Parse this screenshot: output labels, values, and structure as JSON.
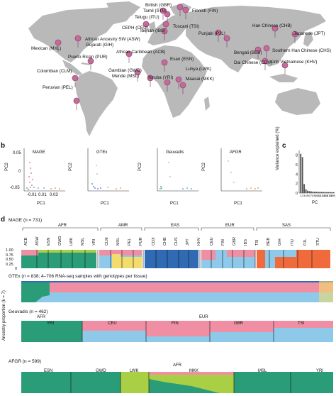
{
  "panel_letters": {
    "a": "a",
    "b": "b",
    "c": "c",
    "d": "d"
  },
  "map": {
    "populations": [
      {
        "label": "British (GBR)"
      },
      {
        "label": "Tamil (STU)"
      },
      {
        "label": "Telugu (ITU)"
      },
      {
        "label": "Finnish (FIN)"
      },
      {
        "label": "CEPH (CEU)"
      },
      {
        "label": "Iberian (IBS)"
      },
      {
        "label": "Toscani (TSI)"
      },
      {
        "label": "Han Chinese (CHB)"
      },
      {
        "label": "African Ancestry SW (ASW)"
      },
      {
        "label": "Gujarati (GIH)"
      },
      {
        "label": "Punjabi (PJL)"
      },
      {
        "label": "Japanese (JPT)"
      },
      {
        "label": "Mexican (MXL)"
      },
      {
        "label": "African Caribbean (ACB)"
      },
      {
        "label": "Puerto Rican (PUR)"
      },
      {
        "label": "Bengali (BEB)"
      },
      {
        "label": "Southern Han Chinese (CHS)"
      },
      {
        "label": "Colombian (CLM)"
      },
      {
        "label": "Esan (ESN)"
      },
      {
        "label": "Dai Chinese (CDX)"
      },
      {
        "label": "Gambian (GWD)"
      },
      {
        "label": "Kinh Vietnamese (KHV)"
      },
      {
        "label": "Luhya (LWK)"
      },
      {
        "label": "Mende (MSL)"
      },
      {
        "label": "Yoruba (YRI)"
      },
      {
        "label": "Maasai (MKK)"
      },
      {
        "label": "Peruvian (PEL)"
      }
    ]
  },
  "pca": {
    "ylabel": "PC2",
    "xlabel": "PC1",
    "xticks": [
      "-0.01",
      "0.01",
      "0.03"
    ],
    "yticks": [
      "0.05",
      "0",
      "-0.05"
    ],
    "panels": [
      {
        "name": "MAGE"
      },
      {
        "name": "GTEx"
      },
      {
        "name": "Geuvadis"
      },
      {
        "name": "AFGR"
      }
    ]
  },
  "chart_data": [
    {
      "type": "bar",
      "ylabel": "Variance explained (%)",
      "xlabel": "PC",
      "yticks": [
        "0",
        "2",
        "4",
        "6",
        "8"
      ],
      "ylim": [
        0,
        9
      ],
      "categories": [
        "1",
        "2",
        "3",
        "4",
        "5",
        "6",
        "7",
        "8",
        "9",
        "10",
        "11",
        "12",
        "13",
        "14",
        "15",
        "16",
        "17",
        "18",
        "19",
        "20"
      ],
      "values": [
        8.3,
        7.6,
        1.9,
        0.8,
        0.5,
        0.4,
        0.35,
        0.3,
        0.28,
        0.26,
        0.25,
        0.24,
        0.23,
        0.22,
        0.21,
        0.2,
        0.2,
        0.19,
        0.19,
        0.18
      ]
    }
  ],
  "admixture": {
    "ylabel": "Ancestry proportion (k = 7)",
    "yticks": [
      "1.00",
      "0.75",
      "0.50",
      "0.25",
      "0"
    ],
    "colors": {
      "teal": "#2a9d78",
      "pink": "#f08fa4",
      "sky": "#8ec9ea",
      "lime": "#a9cf45",
      "blue": "#2f6ab3",
      "orange": "#f06b3c",
      "yellow": "#f2dc6b"
    },
    "mage": {
      "title": "MAGE (n = 731)",
      "superpops": [
        "AFR",
        "AMR",
        "EAS",
        "EUR",
        "SAS"
      ],
      "pops": [
        "ACB",
        "ASW",
        "ESN",
        "GWD",
        "LWK",
        "MSL",
        "YRI",
        "CLM",
        "MXL",
        "PEL",
        "PUR",
        "CDX",
        "CHB",
        "CHS",
        "JPT",
        "KHV",
        "CEU",
        "FIN",
        "GBR",
        "IBS",
        "TSI",
        "BEB",
        "GIH",
        "ITU",
        "PJL",
        "STU"
      ]
    },
    "gtex": {
      "title": "GTEx (n = 838; 4–706 RNA-seq samples with genotypes per tissue)"
    },
    "geuvadis": {
      "title": "Geuvadis (n = 462)",
      "superpops": [
        "AFR",
        "EUR"
      ],
      "pops": [
        "YRI",
        "CEU",
        "FIN",
        "GBR",
        "TSI"
      ]
    },
    "afgr": {
      "title": "AFGR (n = 599)",
      "superpops": [
        "AFR"
      ],
      "pops": [
        "ESN",
        "GWD",
        "LWK",
        "MKK",
        "MSL",
        "YRI"
      ]
    }
  }
}
